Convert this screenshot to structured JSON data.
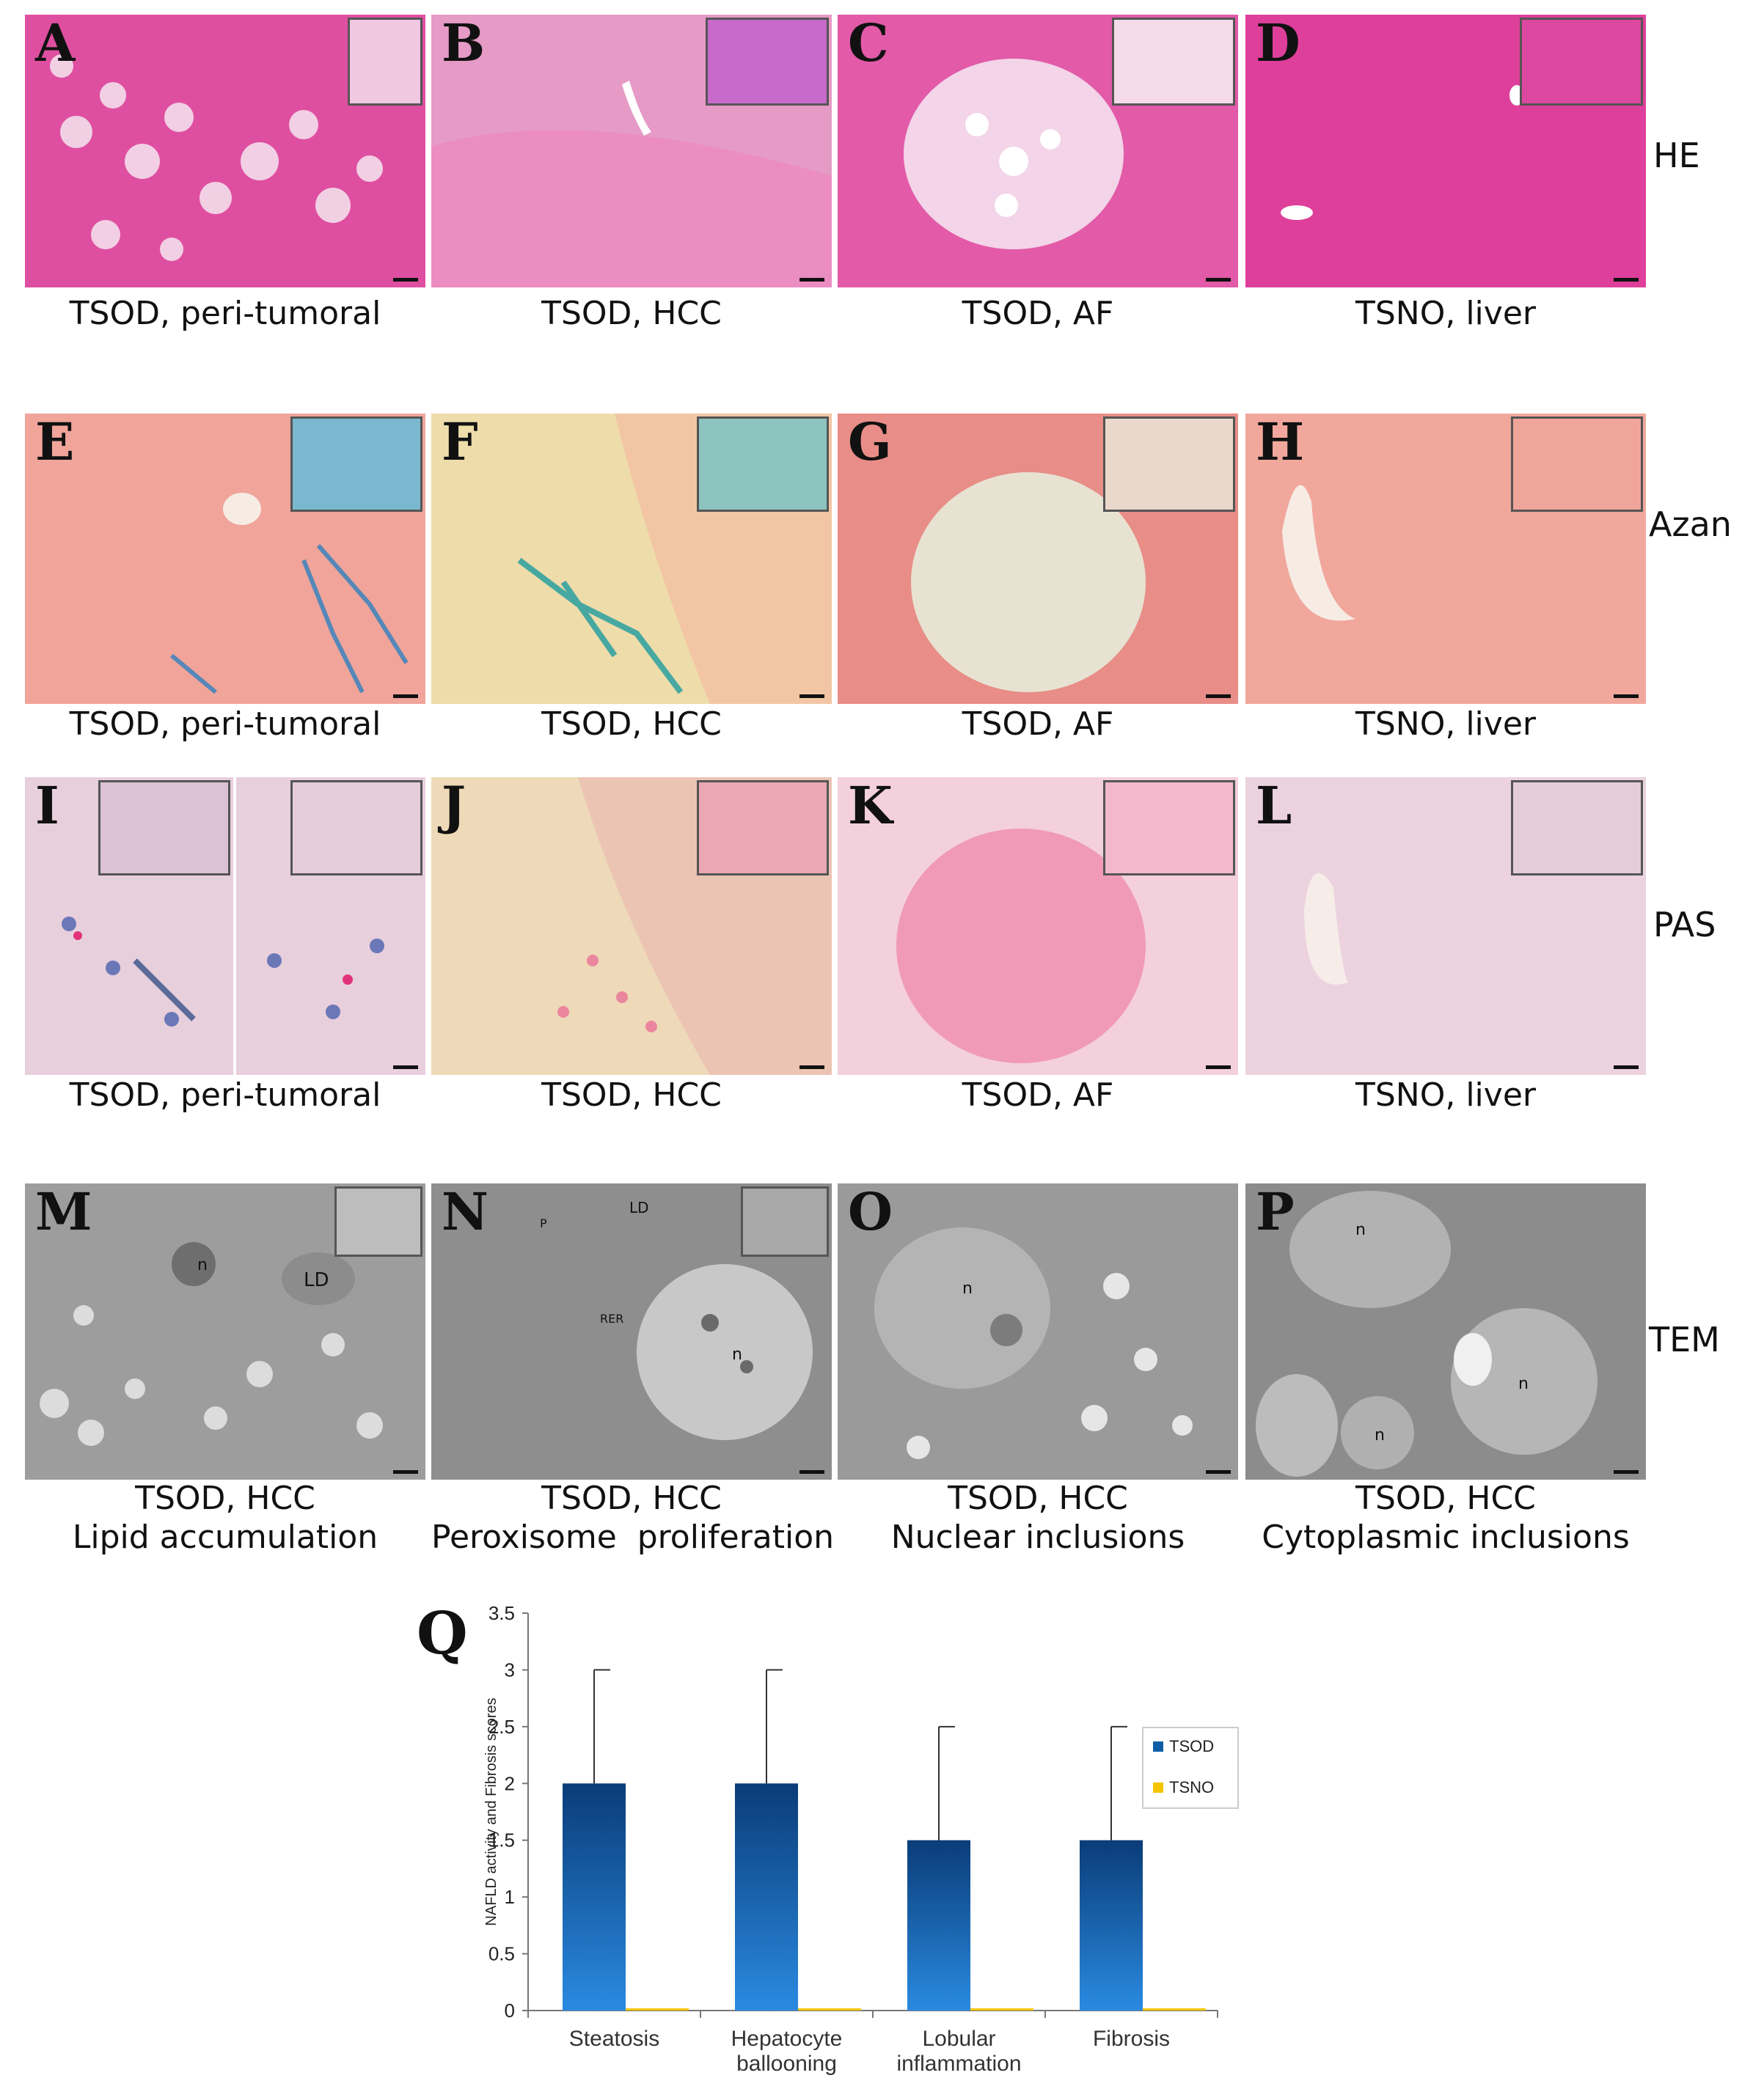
{
  "rows": [
    {
      "label": "HE",
      "panels": [
        {
          "letter": "A",
          "caption": "TSOD, peri-tumoral"
        },
        {
          "letter": "B",
          "caption": "TSOD, HCC"
        },
        {
          "letter": "C",
          "caption": "TSOD, AF"
        },
        {
          "letter": "D",
          "caption": "TSNO, liver"
        }
      ]
    },
    {
      "label": "Azan",
      "panels": [
        {
          "letter": "E",
          "caption": "TSOD, peri-tumoral"
        },
        {
          "letter": "F",
          "caption": "TSOD, HCC"
        },
        {
          "letter": "G",
          "caption": "TSOD, AF"
        },
        {
          "letter": "H",
          "caption": "TSNO, liver"
        }
      ]
    },
    {
      "label": "PAS",
      "panels": [
        {
          "letter": "I",
          "caption": "TSOD, peri-tumoral"
        },
        {
          "letter": "J",
          "caption": "TSOD, HCC"
        },
        {
          "letter": "K",
          "caption": "TSOD, AF"
        },
        {
          "letter": "L",
          "caption": "TSNO, liver"
        }
      ]
    },
    {
      "label": "TEM",
      "panels": [
        {
          "letter": "M",
          "caption": "TSOD, HCC",
          "caption2": "Lipid accumulation"
        },
        {
          "letter": "N",
          "caption": "TSOD, HCC",
          "caption2": "Peroxisome  proliferation"
        },
        {
          "letter": "O",
          "caption": "TSOD, HCC",
          "caption2": "Nuclear inclusions"
        },
        {
          "letter": "P",
          "caption": "TSOD, HCC",
          "caption2": "Cytoplasmic inclusions"
        }
      ]
    }
  ],
  "colors": {
    "he": "#e0449a",
    "azan_bg": "#f0a59a",
    "azan_fiber": "#3aa0b0",
    "pas_bg": "#ead0dc",
    "pas_pink": "#f06aa0",
    "tem": "#a9a9a9",
    "tsod": "#0f5ea6",
    "tsno": "#f5c400"
  },
  "chart_data": {
    "type": "bar",
    "panel_letter": "Q",
    "categories": [
      [
        "Steatosis"
      ],
      [
        "Hepatocyte",
        "ballooning"
      ],
      [
        "Lobular",
        "inflammation"
      ],
      [
        "Fibrosis"
      ]
    ],
    "series": [
      {
        "name": "TSOD",
        "values": [
          2,
          2,
          1.5,
          1.5
        ],
        "error": [
          1,
          1,
          1,
          1
        ],
        "color": "#0f5ea6"
      },
      {
        "name": "TSNO",
        "values": [
          0,
          0,
          0,
          0
        ],
        "error": [
          0,
          0,
          0,
          0
        ],
        "color": "#f5c400"
      }
    ],
    "ylabel": "NAFLD activity  and Fibrosis scores",
    "xlabel": "",
    "ylim": [
      0,
      3.5
    ],
    "yticks": [
      "0",
      "0.5",
      "1",
      "1.5",
      "2",
      "2.5",
      "3",
      "3.5"
    ],
    "grid": false,
    "legend_position": "right"
  }
}
